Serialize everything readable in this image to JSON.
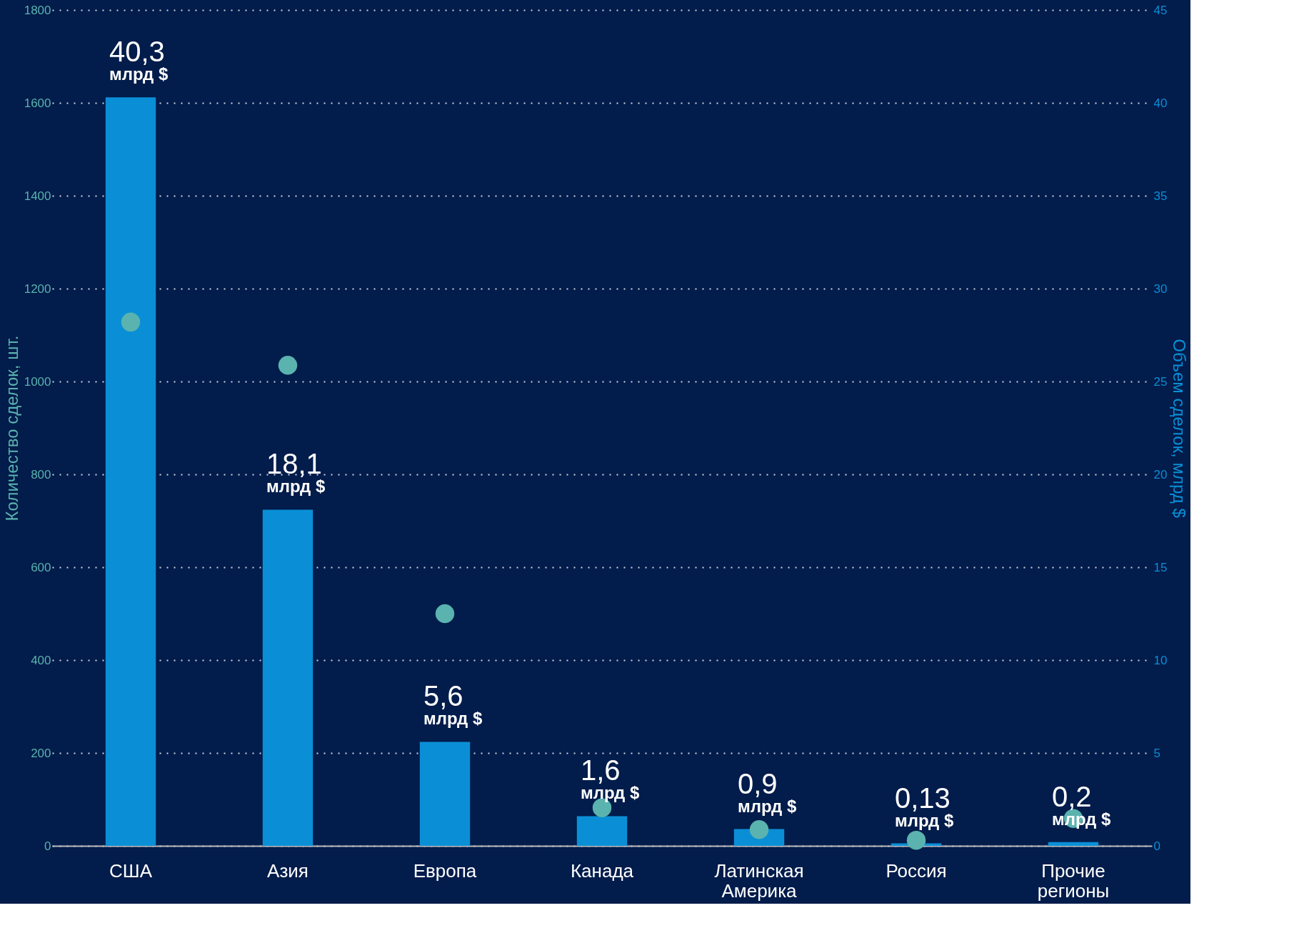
{
  "chart_data": {
    "type": "bar",
    "ylabel": "Количество сделок, шт.",
    "y2label": "Объем сделок, млрд $",
    "categories": [
      "США",
      "Азия",
      "Европа",
      "Канада",
      "Латинская Америка",
      "Россия",
      "Прочие регионы"
    ],
    "ylim": [
      0,
      1800
    ],
    "yticks": [
      0,
      200,
      400,
      600,
      800,
      1000,
      1200,
      1400,
      1600,
      1800
    ],
    "y2lim": [
      0,
      45
    ],
    "y2ticks": [
      0,
      5,
      10,
      15,
      20,
      25,
      30,
      35,
      40,
      45
    ],
    "grid": "y",
    "marker": "circle",
    "series": [
      {
        "axis": "y2",
        "color": "#0a8fd6",
        "values": [
          40.3,
          18.1,
          5.6,
          1.6,
          0.9,
          0.13,
          0.2
        ],
        "value_labels": [
          "40,3 млрд $",
          "18,1 млрд $",
          "5,6 млрд $",
          "1,6 млрд $",
          "0,9 млрд $",
          "0,13 млрд $",
          "0,2 млрд $"
        ]
      },
      {
        "type": "scatter",
        "color": "#5ab3ae",
        "values": [
          1128,
          1035,
          500,
          82,
          35,
          12,
          59
        ]
      }
    ]
  }
}
